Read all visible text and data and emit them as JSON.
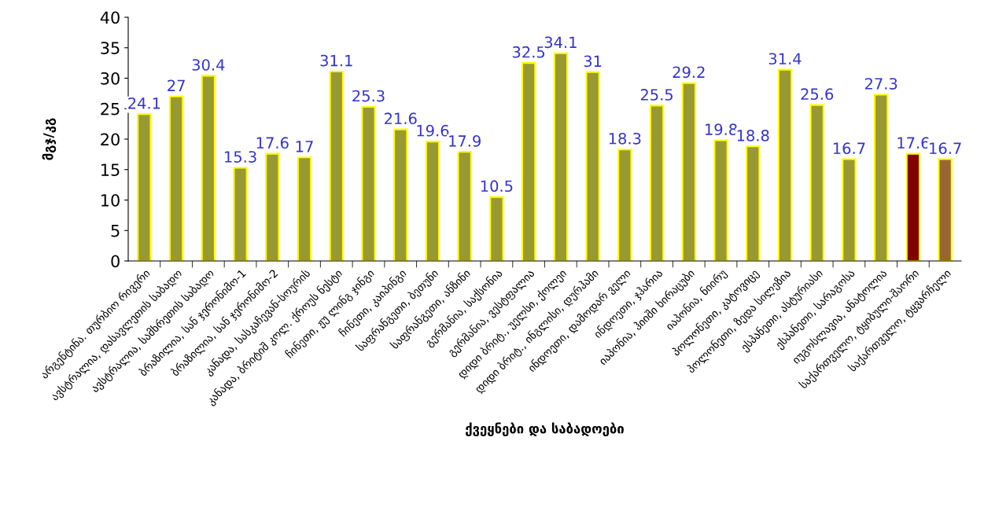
{
  "chart_data": {
    "type": "bar",
    "xlabel": "ქვეყნები და საბადოები",
    "ylabel": "მგჯ/კგ",
    "categories": [
      "არგენტინა. თურბიო რივერი",
      "ავსტრალია, დასავლეთის საბადო",
      "ავსტრალია, სამხრეთის საბადო",
      "ბრაზილია, სან ჯერონიმო-1",
      "ბრაზილია, სან ჯერონიმო-2",
      "კანადა, სასკაჩევან-სოურის",
      "კანადა, ბრიტიშ კოლ. ქროუს ნესტი",
      "ჩინეთი, ჟუ ლინგ ჯინგი",
      "ჩინეთი, კაიპინგი",
      "საფრანგეთი, ბეთუნი",
      "საფრანგეთი, ანზინი",
      "გერმანია, საქსონია",
      "გერმანია, ვესტფალია",
      "დიდი ბრიტ., უელსი, ქოლეი",
      "დიდი ბრიტ., ინგლისი, დურჰამი",
      "ინდოეთი, დამოდარ ველი",
      "ინდოეთი, ჯჰარია",
      "იაპონია, ჰიიში ხირაცუბი",
      "იაპონია, ნიირუ",
      "პოლონეთი, კატოვიცე",
      "პოლონეთი, ზედა სილეზია",
      "ესპანეთი, ასტურიასი",
      "ესპანეთი, სარაგოსა",
      "იუგოსლავია, ანატოლია",
      "საქართველო, ტყიბული-შაორი",
      "საქართველო, ტყვარჩელი"
    ],
    "values": [
      24.1,
      27,
      30.4,
      15.3,
      17.6,
      17,
      31.1,
      25.3,
      21.6,
      19.6,
      17.9,
      10.5,
      32.5,
      34.1,
      31,
      18.3,
      25.5,
      29.2,
      19.8,
      18.8,
      31.4,
      25.6,
      16.7,
      27.3,
      17.6,
      16.7
    ],
    "colors": [
      "#999933",
      "#999933",
      "#999933",
      "#999933",
      "#999933",
      "#999933",
      "#999933",
      "#999933",
      "#999933",
      "#999933",
      "#999933",
      "#999933",
      "#999933",
      "#999933",
      "#999933",
      "#999933",
      "#999933",
      "#999933",
      "#999933",
      "#999933",
      "#999933",
      "#999933",
      "#999933",
      "#999933",
      "#800000",
      "#996633"
    ],
    "ylim": [
      0,
      40
    ],
    "yticks": [
      0,
      5,
      10,
      15,
      20,
      25,
      30,
      35,
      40
    ],
    "data_labels": true,
    "grid": false,
    "legend": false
  }
}
